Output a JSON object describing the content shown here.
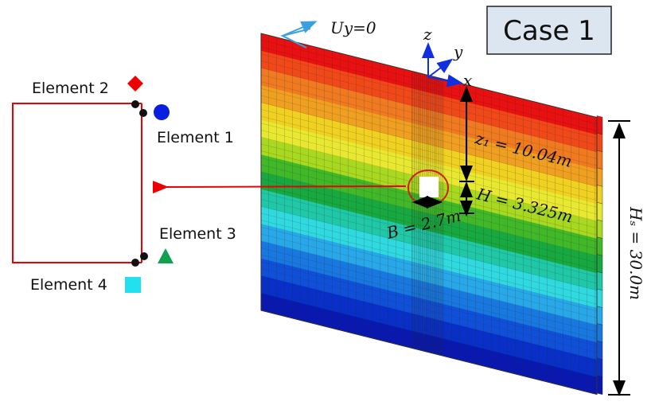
{
  "case_label": "Case 1",
  "boundary_label": "Uy=0",
  "axes": {
    "z": "z",
    "y": "y",
    "x": "x"
  },
  "dimensions": {
    "z1": "z₁ = 10.04m",
    "H": "H = 3.325m",
    "B": "B = 2.7m",
    "Hs": "Hₛ = 30.0m"
  },
  "elements": [
    "Element 1",
    "Element 2",
    "Element 3",
    "Element 4"
  ]
}
